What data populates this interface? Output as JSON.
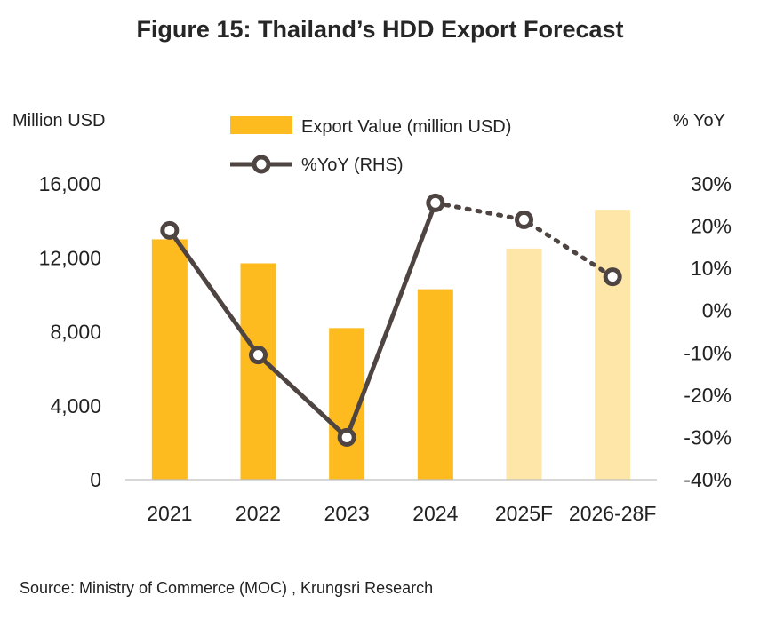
{
  "title": "Figure 15: Thailand’s HDD Export Forecast",
  "source": "Source: Ministry of Commerce (MOC) , Krungsri Research",
  "chart_data": {
    "type": "bar+line",
    "title": "Figure 15: Thailand’s HDD Export Forecast",
    "left_axis_label": "Million USD",
    "right_axis_label": "% YoY",
    "categories": [
      "2021",
      "2022",
      "2023",
      "2024",
      "2025F",
      "2026-28F"
    ],
    "left_ticks": [
      "16,000",
      "12,000",
      "8,000",
      "4,000",
      "0"
    ],
    "left_tick_values": [
      16000,
      12000,
      8000,
      4000,
      0
    ],
    "right_ticks": [
      "30%",
      "20%",
      "10%",
      "0%",
      "-10%",
      "-20%",
      "-30%",
      "-40%"
    ],
    "right_tick_values": [
      30,
      20,
      10,
      0,
      -10,
      -20,
      -30,
      -40
    ],
    "ylim_left": [
      0,
      16000
    ],
    "ylim_right": [
      -40,
      30
    ],
    "series": [
      {
        "name": "Export Value (million USD)",
        "kind": "bar",
        "axis": "left",
        "values": [
          13000,
          11700,
          8200,
          10300,
          12500,
          14600
        ],
        "forecast_from_index": 4,
        "color": "#FDBB1F",
        "forecast_color": "#FDE6A8"
      },
      {
        "name": "%YoY (RHS)",
        "kind": "line",
        "axis": "right",
        "values": [
          19,
          -10.5,
          -30,
          25.5,
          21.5,
          8
        ],
        "forecast_from_index": 3,
        "color": "#4E4441"
      }
    ],
    "legend": [
      {
        "label": "Export Value (million USD)"
      },
      {
        "label": "%YoY (RHS)"
      }
    ]
  }
}
